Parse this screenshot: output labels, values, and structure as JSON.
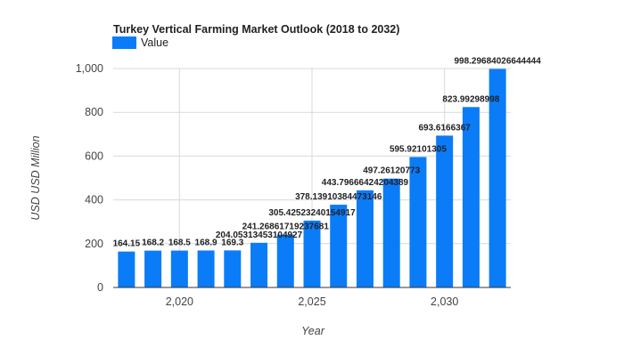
{
  "chart_data": {
    "type": "bar",
    "title": "Turkey Vertical Farming Market Outlook (2018 to 2032)",
    "xlabel": "Year",
    "ylabel": "USD USD Million",
    "legend": {
      "position": "top-left",
      "entries": [
        "Value"
      ]
    },
    "x_ticks": [
      2020,
      2025,
      2030
    ],
    "x_tick_labels": [
      "2,020",
      "2,025",
      "2,030"
    ],
    "y_ticks": [
      0,
      200,
      400,
      600,
      800,
      1000
    ],
    "y_tick_labels": [
      "0",
      "200",
      "400",
      "600",
      "800",
      "1,000"
    ],
    "ylim": [
      0,
      1000
    ],
    "xlim": [
      2017.5,
      2032.5
    ],
    "grid": true,
    "colors": {
      "bar": "#0a7cf7"
    },
    "series": [
      {
        "name": "Value",
        "x": [
          2018,
          2019,
          2020,
          2021,
          2022,
          2023,
          2024,
          2025,
          2026,
          2027,
          2028,
          2029,
          2030,
          2031,
          2032
        ],
        "values": [
          164.15,
          168.2,
          168.5,
          168.9,
          169.3,
          204.05,
          241.27,
          305.43,
          378.14,
          443.8,
          497.26,
          595.92,
          693.62,
          823.99,
          998.3
        ],
        "labels": [
          "164.15",
          "168.2",
          "168.5",
          "168.9",
          "169.3",
          "204.05313453104927",
          "241.26861719237681",
          "305.42523240154917",
          "378.13910384473146",
          "443.79666424204389",
          "497.26120773",
          "595.92101305",
          "693.6166367",
          "823.99298998",
          "998.29684026644444"
        ]
      }
    ]
  }
}
